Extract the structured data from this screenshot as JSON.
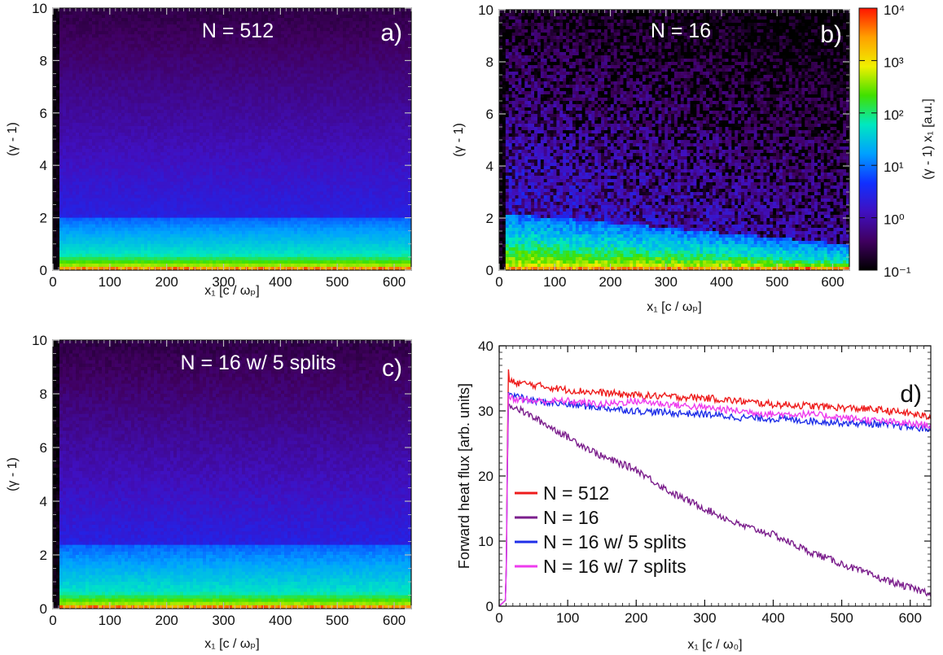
{
  "chart_data": [
    {
      "type": "heatmap",
      "panel": "a)",
      "annotation": "N = 512",
      "xlabel": "x₁ [c / ωₚ]",
      "ylabel": "(γ - 1)",
      "xlim": [
        0,
        630
      ],
      "ylim": [
        0,
        10
      ],
      "xticks": [
        "0",
        "100",
        "200",
        "300",
        "400",
        "500",
        "600"
      ],
      "yticks": [
        "0",
        "2",
        "4",
        "6",
        "8",
        "10"
      ],
      "profile": "uniform",
      "cold_band_top": 2.0,
      "hot_band_top": 0.6,
      "noise": 0.12
    },
    {
      "type": "heatmap",
      "panel": "b)",
      "annotation": "N = 16",
      "xlabel": "x₁ [c / ωₚ]",
      "ylabel": "(γ - 1)",
      "xlim": [
        0,
        630
      ],
      "ylim": [
        0,
        10
      ],
      "xticks": [
        "0",
        "100",
        "200",
        "300",
        "400",
        "500",
        "600"
      ],
      "yticks": [
        "0",
        "2",
        "4",
        "6",
        "8",
        "10"
      ],
      "profile": "decaying",
      "cold_band_top": 2.2,
      "hot_band_top": 1.1,
      "noise": 0.45
    },
    {
      "type": "heatmap",
      "panel": "c)",
      "annotation": "N = 16 w/ 5 splits",
      "xlabel": "x₁ [c / ωₚ]",
      "ylabel": "(γ - 1)",
      "xlim": [
        0,
        630
      ],
      "ylim": [
        0,
        10
      ],
      "xticks": [
        "0",
        "100",
        "200",
        "300",
        "400",
        "500",
        "600"
      ],
      "yticks": [
        "0",
        "2",
        "4",
        "6",
        "8",
        "10"
      ],
      "profile": "uniform",
      "cold_band_top": 2.4,
      "hot_band_top": 0.6,
      "noise": 0.15
    },
    {
      "type": "line",
      "panel": "d)",
      "xlabel": "x₁ [c / ω₀]",
      "ylabel": "Forward heat flux [arb. units]",
      "xlim": [
        0,
        630
      ],
      "ylim": [
        0,
        40
      ],
      "xticks": [
        "0",
        "100",
        "200",
        "300",
        "400",
        "500",
        "600"
      ],
      "yticks": [
        "0",
        "10",
        "20",
        "30",
        "40"
      ],
      "legend_position": "bottom-left",
      "series": [
        {
          "name": "N = 512",
          "color": "#ee1c1c",
          "x": [
            0,
            10,
            13,
            15,
            50,
            100,
            150,
            200,
            250,
            300,
            350,
            400,
            450,
            500,
            550,
            600,
            630
          ],
          "y": [
            0,
            1,
            37,
            34.5,
            34,
            33.2,
            32.8,
            32.4,
            32.2,
            32,
            31.5,
            31,
            30.8,
            30.5,
            30.2,
            29.6,
            29
          ]
        },
        {
          "name": "N = 16",
          "color": "#7b1e8c",
          "x": [
            0,
            10,
            13,
            15,
            50,
            100,
            150,
            200,
            250,
            300,
            350,
            400,
            450,
            500,
            550,
            600,
            630
          ],
          "y": [
            0,
            1,
            31,
            31,
            29,
            26,
            23,
            21,
            17.5,
            15,
            12.5,
            11,
            8.5,
            6.5,
            4.5,
            2.8,
            2
          ]
        },
        {
          "name": "N = 16 w/ 5 splits",
          "color": "#1f2fe8",
          "x": [
            0,
            10,
            13,
            15,
            50,
            100,
            150,
            200,
            250,
            300,
            350,
            400,
            450,
            500,
            550,
            600,
            630
          ],
          "y": [
            0,
            1,
            33,
            32.5,
            31.5,
            31,
            30.5,
            30,
            29.7,
            29.5,
            29,
            28.8,
            28.5,
            28.2,
            28,
            27.5,
            27.2
          ]
        },
        {
          "name": "N = 16 w/ 7 splits",
          "color": "#ee3cee",
          "x": [
            0,
            10,
            13,
            15,
            50,
            100,
            150,
            200,
            250,
            300,
            350,
            400,
            450,
            500,
            550,
            600,
            630
          ],
          "y": [
            0,
            1,
            33,
            32,
            31.5,
            31.5,
            31,
            31.5,
            31,
            30.5,
            30,
            29.5,
            29.5,
            29,
            28.5,
            28,
            27.8
          ]
        }
      ]
    }
  ],
  "colorbar": {
    "label": "(γ - 1) x₁ [a.u.]",
    "ticks": [
      "10⁴",
      "10³",
      "10²",
      "10¹",
      "10⁰",
      "10⁻¹"
    ],
    "colors": [
      "#ff1400",
      "#ffa000",
      "#f0f000",
      "#40e000",
      "#00e8c0",
      "#00a0ff",
      "#1030ff",
      "#4010c0",
      "#400060",
      "#000000"
    ]
  }
}
